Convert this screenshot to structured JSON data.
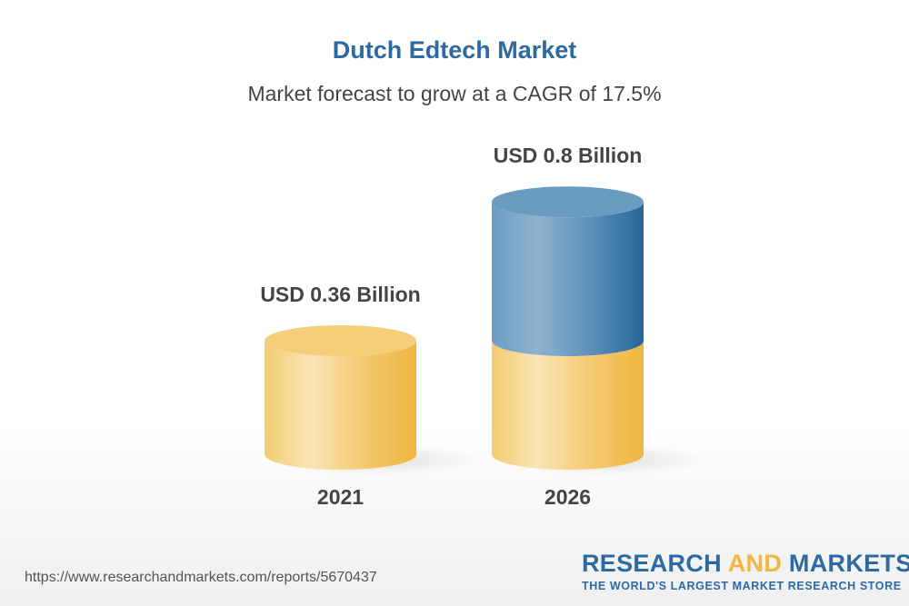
{
  "title": "Dutch Edtech Market",
  "subtitle": "Market forecast to grow at a CAGR of 17.5%",
  "chart_data": {
    "type": "bar",
    "style": "3d-cylinder",
    "categories": [
      "2021",
      "2026"
    ],
    "values": [
      0.36,
      0.8
    ],
    "data_labels": [
      "USD 0.36 Billion",
      "USD 0.8 Billion"
    ],
    "unit": "USD Billion",
    "cagr": "17.5%",
    "colors": {
      "base": "#f2c25a",
      "growth": "#2c6aa1"
    }
  },
  "footer": {
    "url": "https://www.researchandmarkets.com/reports/5670437",
    "logo_part1": "RESEARCH ",
    "logo_part2": "AND",
    "logo_part3": " MARKETS",
    "tagline": "THE WORLD'S LARGEST MARKET RESEARCH STORE"
  }
}
